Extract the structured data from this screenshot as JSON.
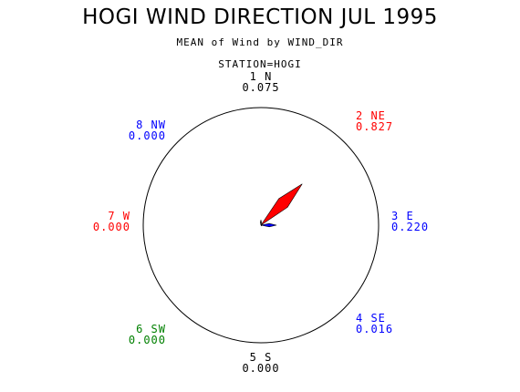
{
  "title": "HOGI WIND DIRECTION JUL 1995",
  "subtitle": "MEAN of Wind by WIND_DIR",
  "station": "STATION=HOGI",
  "chart_data": {
    "type": "polar-bar",
    "categories": [
      {
        "id": "1 N",
        "value": "0.075",
        "angle": 0,
        "color": "#000000"
      },
      {
        "id": "2 NE",
        "value": "0.827",
        "angle": 45,
        "color": "#ff0000"
      },
      {
        "id": "3 E",
        "value": "0.220",
        "angle": 90,
        "color": "#0000ff"
      },
      {
        "id": "4 SE",
        "value": "0.016",
        "angle": 135,
        "color": "#0000ff"
      },
      {
        "id": "5 S",
        "value": "0.000",
        "angle": 180,
        "color": "#000000"
      },
      {
        "id": "6 SW",
        "value": "0.000",
        "angle": 225,
        "color": "#008000"
      },
      {
        "id": "7 W",
        "value": "0.000",
        "angle": 270,
        "color": "#ff0000"
      },
      {
        "id": "8 NW",
        "value": "0.000",
        "angle": 315,
        "color": "#0000ff"
      }
    ]
  }
}
